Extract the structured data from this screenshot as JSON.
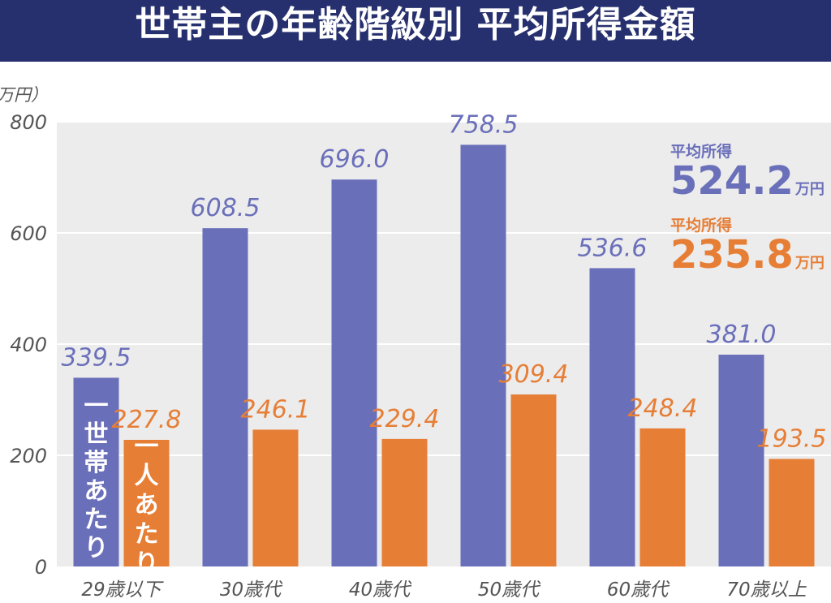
{
  "title": "世帯主の年齢階級別 平均所得金額",
  "unit_label": "万円）",
  "averages": {
    "household": {
      "label": "平均所得",
      "value": "524.2",
      "unit": "万円"
    },
    "person": {
      "label": "平均所得",
      "value": "235.8",
      "unit": "万円"
    }
  },
  "colors": {
    "household": "#6a6fba",
    "person": "#e67e36",
    "header": "#27306e",
    "plot_bg": "#ececec"
  },
  "chart_data": {
    "type": "bar",
    "title": "世帯主の年齢階級別 平均所得金額",
    "ylabel": "万円",
    "ylim": [
      0,
      800
    ],
    "yticks": [
      0,
      200,
      400,
      600,
      800
    ],
    "grid": true,
    "categories": [
      "29歳以下",
      "30歳代",
      "40歳代",
      "50歳代",
      "60歳代",
      "70歳以上"
    ],
    "series": [
      {
        "name": "一世帯あたり",
        "values": [
          339.5,
          608.5,
          696.0,
          758.5,
          536.6,
          381.0
        ],
        "labels": [
          "339.5",
          "608.5",
          "696.0",
          "758.5",
          "536.6",
          "381.0"
        ]
      },
      {
        "name": "一人あたり",
        "values": [
          227.8,
          246.1,
          229.4,
          309.4,
          248.4,
          193.5
        ],
        "labels": [
          "227.8",
          "246.1",
          "229.4",
          "309.4",
          "248.4",
          "193.5"
        ]
      }
    ]
  }
}
